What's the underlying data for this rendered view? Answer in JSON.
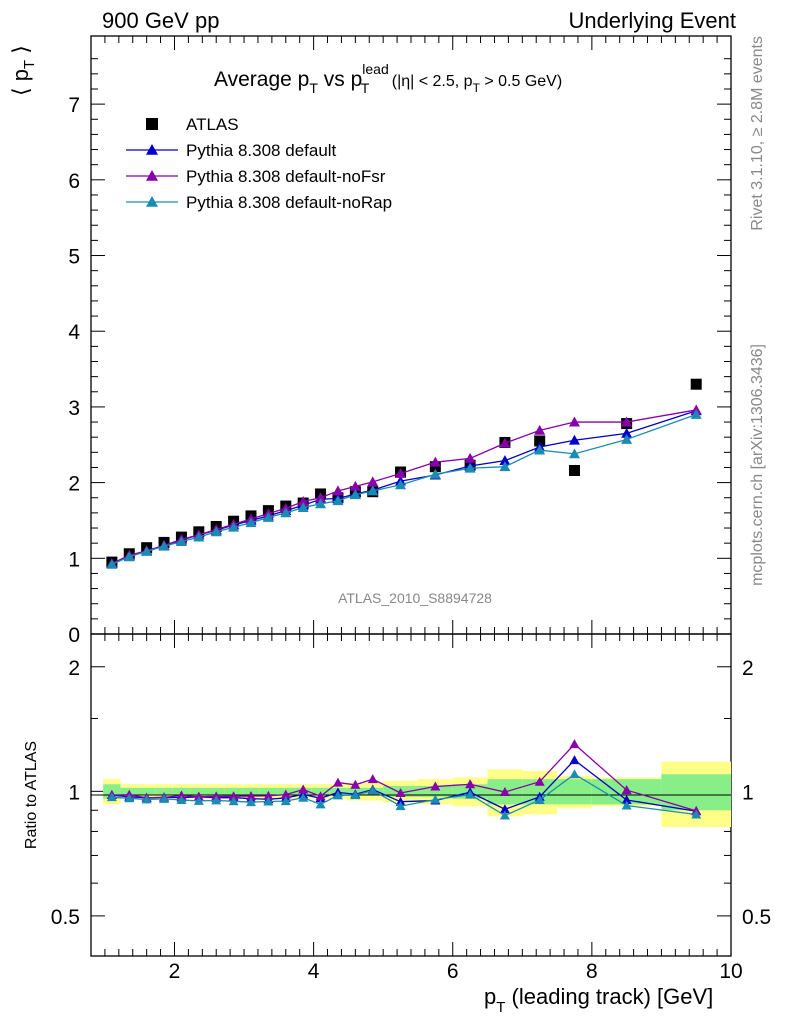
{
  "header": {
    "left": "900 GeV pp",
    "right": "Underlying Event",
    "side_top": "Rivet 3.1.10, ≥ 2.8M events",
    "side_bottom": "mcplots.cern.ch [arXiv:1306.3436]",
    "analysis_id": "ATLAS_2010_S8894728"
  },
  "chart_data": [
    {
      "type": "line",
      "title": "Average pT vs pT lead (|η| < 2.5, pT > 0.5 GeV)",
      "title_parts": {
        "a": "Average p",
        "sub1": "T",
        "b": " vs p",
        "sup": "lead",
        "sub2": "T",
        "c": " (|η| < 2.5, p",
        "sub3": "T",
        "d": " > 0.5 GeV)"
      },
      "ylabel": "⟨ pT ⟩",
      "ylabel_parts": {
        "a": "⟨ p",
        "sub": "T",
        "b": " ⟩"
      },
      "xlim": [
        0.8,
        10.0
      ],
      "ylim": [
        0,
        7.9
      ],
      "yticks": [
        0,
        1,
        2,
        3,
        4,
        5,
        6,
        7
      ],
      "legend_position": "top-left",
      "x": [
        1.1,
        1.35,
        1.6,
        1.85,
        2.1,
        2.35,
        2.6,
        2.85,
        3.1,
        3.35,
        3.6,
        3.85,
        4.1,
        4.35,
        4.6,
        4.85,
        5.25,
        5.75,
        6.25,
        6.75,
        7.25,
        7.75,
        8.5,
        9.5
      ],
      "series": [
        {
          "name": "ATLAS",
          "color": "#000000",
          "marker": "square",
          "values": [
            0.95,
            1.06,
            1.14,
            1.21,
            1.28,
            1.35,
            1.42,
            1.49,
            1.56,
            1.63,
            1.69,
            1.73,
            1.85,
            1.8,
            1.88,
            1.88,
            2.14,
            2.21,
            2.23,
            2.53,
            2.55,
            2.16,
            2.78,
            3.3
          ]
        },
        {
          "name": "Pythia 8.308 default",
          "color": "#0000cc",
          "marker": "triangle",
          "values": [
            0.93,
            1.03,
            1.1,
            1.17,
            1.24,
            1.31,
            1.37,
            1.44,
            1.5,
            1.56,
            1.63,
            1.7,
            1.78,
            1.79,
            1.85,
            1.9,
            2.02,
            2.1,
            2.22,
            2.29,
            2.47,
            2.56,
            2.65,
            2.95
          ]
        },
        {
          "name": "Pythia 8.308 default-noFsr",
          "color": "#8800aa",
          "marker": "triangle",
          "values": [
            0.93,
            1.04,
            1.1,
            1.17,
            1.25,
            1.31,
            1.38,
            1.45,
            1.52,
            1.59,
            1.66,
            1.75,
            1.8,
            1.89,
            1.95,
            2.01,
            2.12,
            2.27,
            2.32,
            2.52,
            2.69,
            2.8,
            2.8,
            2.96
          ]
        },
        {
          "name": "Pythia 8.308 default-noRap",
          "color": "#1a8cb3",
          "marker": "triangle",
          "values": [
            0.92,
            1.02,
            1.09,
            1.16,
            1.22,
            1.28,
            1.35,
            1.41,
            1.47,
            1.54,
            1.6,
            1.67,
            1.72,
            1.76,
            1.84,
            1.89,
            1.97,
            2.11,
            2.19,
            2.21,
            2.43,
            2.38,
            2.57,
            2.9
          ]
        }
      ]
    },
    {
      "type": "line",
      "xlabel": "pT (leading track) [GeV]",
      "xlabel_parts": {
        "a": "p",
        "sub": "T",
        "b": " (leading track) [GeV]"
      },
      "ylabel": "Ratio to ATLAS",
      "xlim": [
        0.8,
        10.0
      ],
      "ylim": [
        0.4,
        2.4
      ],
      "log_y": true,
      "yticks": [
        0.5,
        1,
        2
      ],
      "xticks": [
        2,
        4,
        6,
        8,
        10
      ],
      "band_edges": [
        0.975,
        1.225,
        1.475,
        1.725,
        1.975,
        2.225,
        2.475,
        2.725,
        2.975,
        3.225,
        3.475,
        3.725,
        3.975,
        4.225,
        4.475,
        4.725,
        5.0,
        5.5,
        6.0,
        6.5,
        7.0,
        7.5,
        8.0,
        9.0,
        10.0
      ],
      "band_stat": [
        0.04,
        0.02,
        0.02,
        0.02,
        0.02,
        0.02,
        0.02,
        0.02,
        0.02,
        0.02,
        0.02,
        0.02,
        0.02,
        0.02,
        0.02,
        0.02,
        0.03,
        0.03,
        0.04,
        0.07,
        0.07,
        0.07,
        0.07,
        0.1
      ],
      "band_total": [
        0.07,
        0.04,
        0.04,
        0.04,
        0.04,
        0.04,
        0.04,
        0.04,
        0.04,
        0.04,
        0.04,
        0.04,
        0.04,
        0.04,
        0.05,
        0.05,
        0.06,
        0.07,
        0.08,
        0.13,
        0.12,
        0.09,
        0.08,
        0.18
      ],
      "x": [
        1.1,
        1.35,
        1.6,
        1.85,
        2.1,
        2.35,
        2.6,
        2.85,
        3.1,
        3.35,
        3.6,
        3.85,
        4.1,
        4.35,
        4.6,
        4.85,
        5.25,
        5.75,
        6.25,
        6.75,
        7.25,
        7.75,
        8.5,
        9.5
      ],
      "series": [
        {
          "name": "Pythia 8.308 default",
          "color": "#0000cc",
          "values": [
            0.98,
            0.97,
            0.965,
            0.967,
            0.966,
            0.97,
            0.965,
            0.966,
            0.96,
            0.957,
            0.964,
            0.983,
            0.962,
            0.994,
            0.984,
            1.01,
            0.944,
            0.95,
            0.995,
            0.905,
            0.97,
            1.19,
            0.953,
            0.895
          ]
        },
        {
          "name": "Pythia 8.308 default-noFsr",
          "color": "#8800aa",
          "values": [
            0.98,
            0.981,
            0.965,
            0.967,
            0.977,
            0.97,
            0.972,
            0.973,
            0.974,
            0.975,
            0.982,
            1.01,
            0.973,
            1.05,
            1.037,
            1.07,
            0.991,
            1.027,
            1.04,
            0.996,
            1.055,
            1.3,
            1.007,
            0.897
          ]
        },
        {
          "name": "Pythia 8.308 default-noRap",
          "color": "#1a8cb3",
          "values": [
            0.968,
            0.962,
            0.956,
            0.959,
            0.953,
            0.948,
            0.951,
            0.946,
            0.942,
            0.945,
            0.947,
            0.965,
            0.93,
            0.978,
            0.979,
            1.005,
            0.921,
            0.955,
            0.982,
            0.874,
            0.953,
            1.1,
            0.924,
            0.879
          ]
        }
      ]
    }
  ]
}
